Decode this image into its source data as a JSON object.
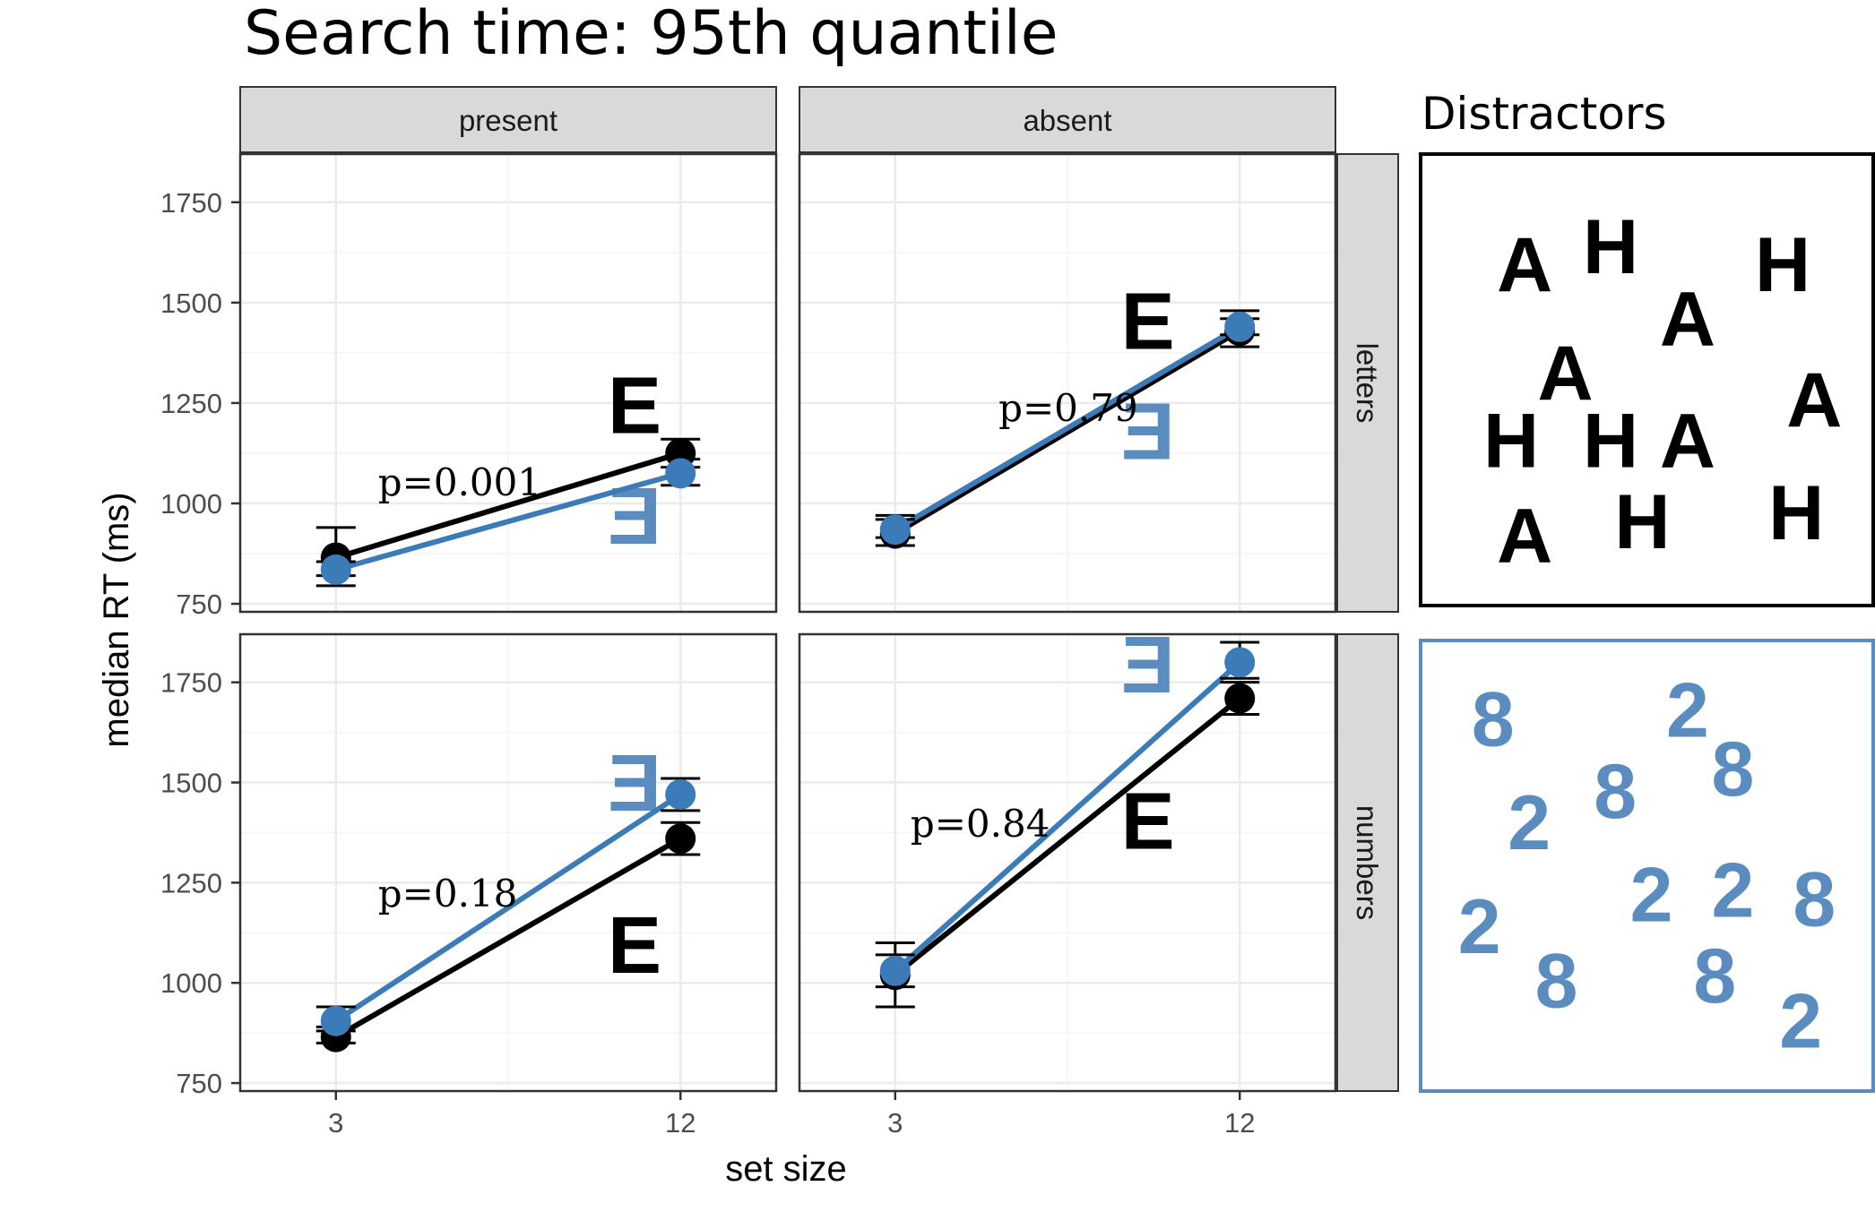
{
  "title": "Search time: 95th quantile",
  "distractors_title": "Distractors",
  "colors": {
    "text": "#000000",
    "text_blue": "#3B7BB8",
    "glyph_blue": "#5B8CC0",
    "strip_bg": "#D9D9D9",
    "grid": "#EBEBEB",
    "panel_border": "#333333"
  },
  "chart_data": {
    "type": "line",
    "x_label": "set size",
    "y_label": "median RT (ms)",
    "x_ticks": [
      3,
      12
    ],
    "y_ticks": [
      750,
      1000,
      1250,
      1500,
      1750
    ],
    "ylim": [
      730,
      1870
    ],
    "column_strips": [
      "present",
      "absent"
    ],
    "row_strips": [
      "letters",
      "numbers"
    ],
    "grid": true,
    "panels": [
      {
        "column": "present",
        "row": "letters",
        "p_label": "p=0.001",
        "p_at": [
          4.1,
          1020
        ],
        "glyph_black": {
          "char": "E",
          "at": [
            10.8,
            1175
          ]
        },
        "glyph_blue": {
          "char": "E",
          "at": [
            10.8,
            900
          ],
          "mirrored": true
        },
        "series": [
          {
            "color": "black",
            "x": [
              3,
              12
            ],
            "y": [
              865,
              1125
            ],
            "err_low": [
              820,
              1090
            ],
            "err_high": [
              940,
              1160
            ]
          },
          {
            "color": "blue",
            "x": [
              3,
              12
            ],
            "y": [
              835,
              1075
            ],
            "err_low": [
              795,
              1045
            ],
            "err_high": [
              855,
              1110
            ]
          }
        ]
      },
      {
        "column": "absent",
        "row": "letters",
        "p_label": "p=0.79",
        "p_at": [
          5.7,
          1205
        ],
        "glyph_black": {
          "char": "E",
          "at": [
            9.6,
            1385
          ]
        },
        "glyph_blue": {
          "char": "E",
          "at": [
            9.6,
            1110
          ],
          "mirrored": true
        },
        "series": [
          {
            "color": "black",
            "x": [
              3,
              12
            ],
            "y": [
              925,
              1430
            ],
            "err_low": [
              895,
              1390
            ],
            "err_high": [
              960,
              1480
            ]
          },
          {
            "color": "blue",
            "x": [
              3,
              12
            ],
            "y": [
              935,
              1440
            ],
            "err_low": [
              915,
              1420
            ],
            "err_high": [
              970,
              1460
            ]
          }
        ]
      },
      {
        "column": "present",
        "row": "numbers",
        "p_label": "p=0.18",
        "p_at": [
          4.1,
          1190
        ],
        "glyph_black": {
          "char": "E",
          "at": [
            10.8,
            1025
          ]
        },
        "glyph_blue": {
          "char": "E",
          "at": [
            10.8,
            1430
          ],
          "mirrored": true
        },
        "series": [
          {
            "color": "black",
            "x": [
              3,
              12
            ],
            "y": [
              865,
              1360
            ],
            "err_low": [
              850,
              1320
            ],
            "err_high": [
              890,
              1400
            ]
          },
          {
            "color": "blue",
            "x": [
              3,
              12
            ],
            "y": [
              905,
              1470
            ],
            "err_low": [
              880,
              1430
            ],
            "err_high": [
              940,
              1510
            ]
          }
        ]
      },
      {
        "column": "absent",
        "row": "numbers",
        "p_label": "p=0.84",
        "p_at": [
          3.4,
          1365
        ],
        "glyph_black": {
          "char": "E",
          "at": [
            9.6,
            1335
          ]
        },
        "glyph_blue": {
          "char": "E",
          "at": [
            9.6,
            1725
          ],
          "mirrored": true
        },
        "series": [
          {
            "color": "black",
            "x": [
              3,
              12
            ],
            "y": [
              1020,
              1710
            ],
            "err_low": [
              940,
              1670
            ],
            "err_high": [
              1100,
              1750
            ]
          },
          {
            "color": "blue",
            "x": [
              3,
              12
            ],
            "y": [
              1030,
              1800
            ],
            "err_low": [
              990,
              1760
            ],
            "err_high": [
              1070,
              1850
            ]
          }
        ]
      }
    ]
  },
  "distractor_panels": [
    {
      "name": "letters",
      "color": "#000000",
      "glyphs": [
        {
          "ch": "A",
          "fx": 0.23,
          "fy": 0.24
        },
        {
          "ch": "H",
          "fx": 0.42,
          "fy": 0.2
        },
        {
          "ch": "H",
          "fx": 0.8,
          "fy": 0.24
        },
        {
          "ch": "A",
          "fx": 0.59,
          "fy": 0.36
        },
        {
          "ch": "A",
          "fx": 0.32,
          "fy": 0.48
        },
        {
          "ch": "A",
          "fx": 0.87,
          "fy": 0.54
        },
        {
          "ch": "H",
          "fx": 0.2,
          "fy": 0.63
        },
        {
          "ch": "H",
          "fx": 0.42,
          "fy": 0.63
        },
        {
          "ch": "A",
          "fx": 0.59,
          "fy": 0.63
        },
        {
          "ch": "A",
          "fx": 0.23,
          "fy": 0.84
        },
        {
          "ch": "H",
          "fx": 0.49,
          "fy": 0.81
        },
        {
          "ch": "H",
          "fx": 0.83,
          "fy": 0.79
        }
      ]
    },
    {
      "name": "numbers",
      "color": "#5B8CC0",
      "glyphs": [
        {
          "ch": "8",
          "fx": 0.16,
          "fy": 0.17
        },
        {
          "ch": "2",
          "fx": 0.59,
          "fy": 0.15
        },
        {
          "ch": "8",
          "fx": 0.69,
          "fy": 0.28
        },
        {
          "ch": "8",
          "fx": 0.43,
          "fy": 0.33
        },
        {
          "ch": "2",
          "fx": 0.24,
          "fy": 0.4
        },
        {
          "ch": "2",
          "fx": 0.51,
          "fy": 0.56
        },
        {
          "ch": "2",
          "fx": 0.69,
          "fy": 0.55
        },
        {
          "ch": "8",
          "fx": 0.87,
          "fy": 0.57
        },
        {
          "ch": "2",
          "fx": 0.13,
          "fy": 0.63
        },
        {
          "ch": "8",
          "fx": 0.3,
          "fy": 0.75
        },
        {
          "ch": "8",
          "fx": 0.65,
          "fy": 0.74
        },
        {
          "ch": "2",
          "fx": 0.84,
          "fy": 0.84
        }
      ]
    }
  ]
}
